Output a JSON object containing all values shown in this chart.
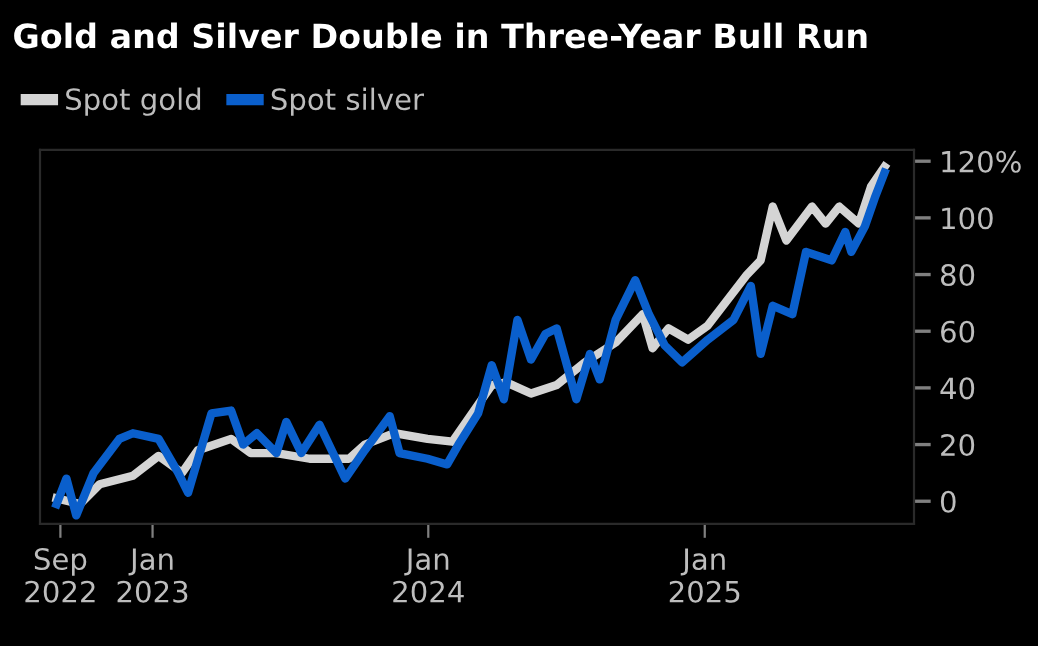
{
  "chart_data": {
    "type": "line",
    "title": "Gold and Silver Double in Three-Year Bull Run",
    "series": [
      {
        "name": "Spot gold",
        "color": "#d4d4d4",
        "x": [
          "2022-08-27",
          "2022-09-27",
          "2022-10-23",
          "2022-12-06",
          "2023-01-09",
          "2023-02-09",
          "2023-03-02",
          "2023-04-15",
          "2023-05-11",
          "2023-06-14",
          "2023-07-28",
          "2023-09-18",
          "2023-10-09",
          "2023-11-17",
          "2023-12-31",
          "2024-02-02",
          "2024-02-28",
          "2024-03-25",
          "2024-04-13",
          "2024-05-16",
          "2024-06-19",
          "2024-07-26",
          "2024-09-05",
          "2024-10-11",
          "2024-10-24",
          "2024-11-14",
          "2024-12-10",
          "2025-01-05",
          "2025-01-31",
          "2025-02-26",
          "2025-03-16",
          "2025-04-01",
          "2025-04-19",
          "2025-05-23",
          "2025-06-10",
          "2025-06-28",
          "2025-07-24",
          "2025-08-09",
          "2025-08-27"
        ],
        "values": [
          1,
          -1,
          6,
          9,
          16,
          10,
          18,
          22,
          17,
          17,
          15,
          15,
          20,
          24,
          22,
          21,
          31,
          41,
          42,
          38,
          41,
          49,
          56,
          66,
          54,
          61,
          57,
          62,
          71,
          80,
          85,
          104,
          92,
          104,
          98,
          104,
          98,
          111,
          118
        ]
      },
      {
        "name": "Spot silver",
        "color": "#0a5fcc",
        "x": [
          "2022-08-27",
          "2022-09-09",
          "2022-09-22",
          "2022-10-15",
          "2022-11-18",
          "2022-12-06",
          "2023-01-09",
          "2023-02-04",
          "2023-02-17",
          "2023-03-20",
          "2023-04-15",
          "2023-05-01",
          "2023-05-19",
          "2023-06-14",
          "2023-06-27",
          "2023-07-17",
          "2023-08-10",
          "2023-09-13",
          "2023-10-09",
          "2023-11-11",
          "2023-11-24",
          "2023-12-31",
          "2024-01-26",
          "2024-02-10",
          "2024-03-07",
          "2024-03-25",
          "2024-04-10",
          "2024-04-28",
          "2024-05-16",
          "2024-06-04",
          "2024-06-19",
          "2024-07-15",
          "2024-08-02",
          "2024-08-15",
          "2024-09-05",
          "2024-10-01",
          "2024-10-19",
          "2024-11-09",
          "2024-12-02",
          "2025-01-05",
          "2025-02-08",
          "2025-03-03",
          "2025-03-16",
          "2025-04-01",
          "2025-04-27",
          "2025-05-15",
          "2025-06-18",
          "2025-07-06",
          "2025-07-14",
          "2025-08-01",
          "2025-08-14",
          "2025-08-27"
        ],
        "values": [
          -1,
          8,
          -5,
          10,
          22,
          24,
          22,
          10,
          3,
          31,
          32,
          20,
          24,
          17,
          28,
          17,
          27,
          8,
          18,
          30,
          17,
          15,
          13,
          20,
          31,
          48,
          36,
          64,
          50,
          59,
          61,
          36,
          52,
          43,
          64,
          78,
          66,
          55,
          49,
          57,
          64,
          76,
          52,
          69,
          66,
          88,
          85,
          95,
          88,
          97,
          107,
          116
        ]
      }
    ],
    "xlim": [
      "2022-08-05",
      "2025-10-05"
    ],
    "xticks": [
      {
        "value": "2022-09-01",
        "label": "Sep\n2022"
      },
      {
        "value": "2023-01-01",
        "label": "Jan\n2023"
      },
      {
        "value": "2024-01-01",
        "label": "Jan\n2024"
      },
      {
        "value": "2025-01-01",
        "label": "Jan\n2025"
      }
    ],
    "ylim": [
      -8,
      124
    ],
    "yticks": [
      {
        "value": 120,
        "label": "120%"
      },
      100,
      80,
      60,
      40,
      20,
      0
    ],
    "grid": false,
    "legend": "top left",
    "marker": "none",
    "line_style": "solid"
  }
}
